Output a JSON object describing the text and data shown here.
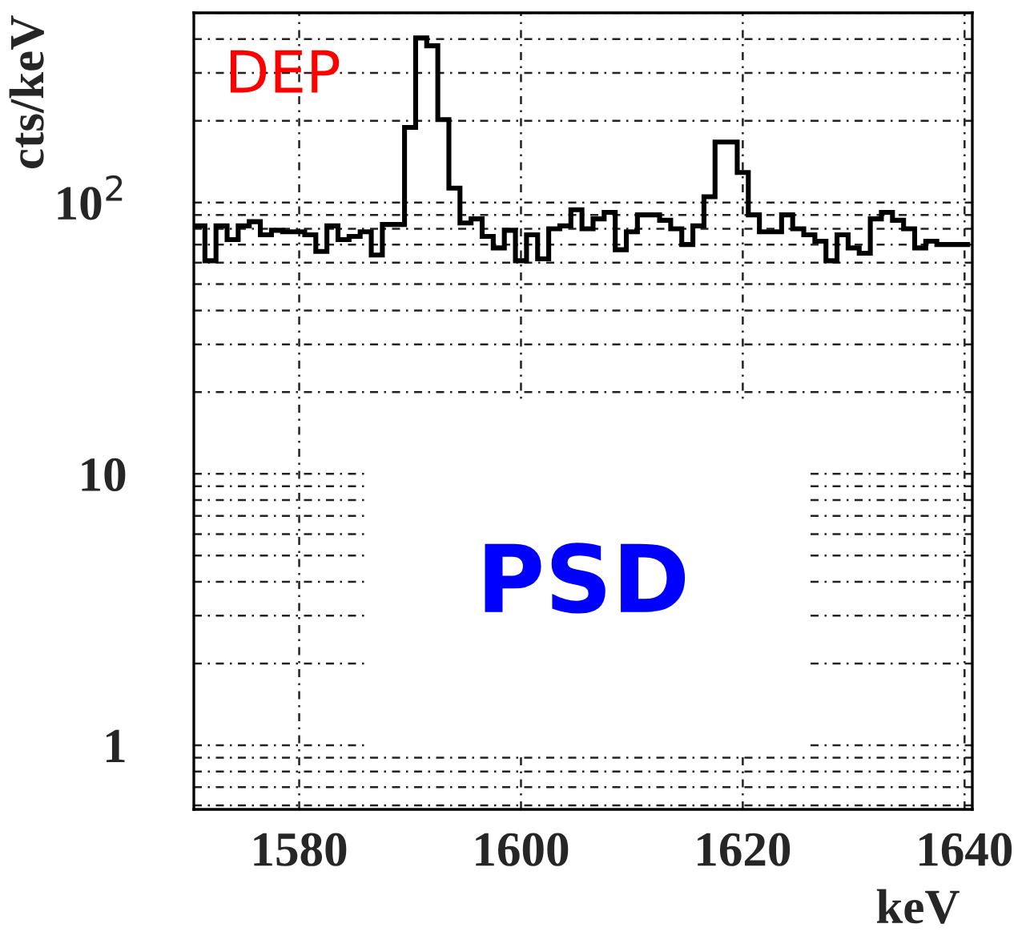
{
  "chart_data": {
    "type": "histogram",
    "ylabel": "cts/keV",
    "xlabel": "keV",
    "annotations": [
      "DEP",
      "PSD"
    ],
    "bins": [
      1570.5,
      1571.5,
      1572.5,
      1573.5,
      1574.5,
      1575.5,
      1576.5,
      1577.5,
      1578.5,
      1579.5,
      1580.5,
      1581.5,
      1582.5,
      1583.5,
      1584.5,
      1585.5,
      1586.5,
      1587.5,
      1588.5,
      1589.5,
      1590.5,
      1591.5,
      1592.5,
      1593.5,
      1594.5,
      1595.5,
      1596.5,
      1597.5,
      1598.5,
      1599.5,
      1600.5,
      1601.5,
      1602.5,
      1603.5,
      1604.5,
      1605.5,
      1606.5,
      1607.5,
      1608.5,
      1609.5,
      1610.5,
      1611.5,
      1612.5,
      1613.5,
      1614.5,
      1615.5,
      1616.5,
      1617.5,
      1618.5,
      1619.5,
      1620.5,
      1621.5,
      1622.5,
      1623.5,
      1624.5,
      1625.5,
      1626.5,
      1627.5,
      1628.5,
      1629.5,
      1630.5,
      1631.5,
      1632.5,
      1633.5,
      1634.5,
      1635.5,
      1636.5,
      1637.5,
      1638.5,
      1639.5,
      1640.5
    ],
    "values": [
      82,
      61,
      82,
      73,
      82,
      85,
      76,
      79,
      78,
      78,
      76,
      66,
      82,
      73,
      75,
      78,
      64,
      83,
      83,
      189,
      404,
      378,
      202,
      113,
      84,
      87,
      75,
      68,
      79,
      61,
      76,
      62,
      80,
      82,
      94,
      80,
      87,
      92,
      67,
      78,
      90,
      90,
      86,
      80,
      70,
      82,
      105,
      167,
      167,
      129,
      90,
      78,
      78,
      90,
      80,
      76,
      72,
      61,
      76,
      68,
      65,
      87,
      92,
      86,
      80,
      68,
      72,
      70,
      70,
      70
    ],
    "color": "#000000",
    "log": "y",
    "xlim": [
      1570.5,
      1640.7
    ],
    "ylim": [
      0.58,
      500
    ],
    "xticks": [
      1580,
      1600,
      1620,
      1640
    ],
    "yticks": [
      1,
      10,
      {
        "value": 100,
        "label": "10$^{2}$"
      }
    ],
    "grid": true
  }
}
